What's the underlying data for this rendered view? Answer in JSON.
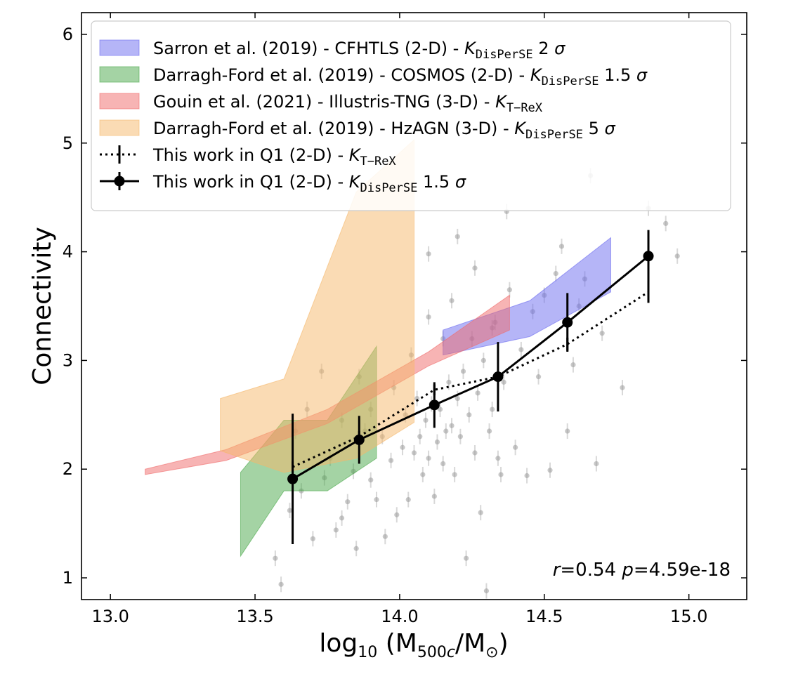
{
  "chart_data": {
    "type": "scatter",
    "title": "",
    "xlabel": "log10 (M500c/M⊙)",
    "ylabel": "Connectivity",
    "xlim": [
      12.9,
      15.2
    ],
    "ylim": [
      0.8,
      6.2
    ],
    "xticks": [
      "13.0",
      "13.5",
      "14.0",
      "14.5",
      "15.0"
    ],
    "yticks": [
      "1",
      "2",
      "3",
      "4",
      "5",
      "6"
    ],
    "legend_position": "top-left",
    "annotation": {
      "r_label": "r",
      "r_value": "=0.54 ",
      "p_label": "p",
      "p_value": "=4.59e-18"
    },
    "bands": [
      {
        "name": "Sarron et al. (2019) - CFHTLS (2-D) - ",
        "k": "K",
        "sub": "DisPerSE",
        "suffix": " 2 ",
        "sigma": "σ",
        "color": "#6b6bf0",
        "x": [
          14.15,
          14.45,
          14.73
        ],
        "upper": [
          3.28,
          3.55,
          4.13
        ],
        "lower": [
          3.05,
          3.22,
          3.63
        ]
      },
      {
        "name": "Darragh-Ford et al. (2019) - COSMOS (2-D) - ",
        "k": "K",
        "sub": "DisPerSE",
        "suffix": " 1.5 ",
        "sigma": "σ",
        "color": "#4aa84a",
        "x": [
          13.45,
          13.6,
          13.75,
          13.92
        ],
        "upper": [
          1.97,
          2.45,
          2.45,
          3.13
        ],
        "lower": [
          1.2,
          1.8,
          1.8,
          2.1
        ]
      },
      {
        "name": "Gouin et al. (2021) - Illustris-TNG (3-D) - ",
        "k": "K",
        "sub": "T−ReX",
        "suffix": "",
        "sigma": "",
        "color": "#f06a6a",
        "x": [
          13.12,
          13.4,
          13.75,
          14.1,
          14.38
        ],
        "upper": [
          2.0,
          2.18,
          2.55,
          3.08,
          3.6
        ],
        "lower": [
          1.95,
          2.08,
          2.42,
          2.95,
          3.28
        ]
      },
      {
        "name": "Darragh-Ford et al. (2019) - HzAGN (3-D) - ",
        "k": "K",
        "sub": "DisPerSE",
        "suffix": " 5 ",
        "sigma": "σ",
        "color": "#f5b86a",
        "x": [
          13.38,
          13.6,
          13.85,
          14.05
        ],
        "upper": [
          2.65,
          2.83,
          4.55,
          5.03
        ],
        "lower": [
          2.17,
          1.97,
          2.1,
          2.43
        ]
      }
    ],
    "series": [
      {
        "name": "This work in Q1 (2-D) - ",
        "k": "K",
        "sub": "T−ReX",
        "suffix": "",
        "sigma": "",
        "style": "dotted",
        "x": [
          13.63,
          13.86,
          14.12,
          14.34,
          14.58,
          14.86
        ],
        "y": [
          2.02,
          2.3,
          2.73,
          2.85,
          3.15,
          3.63
        ],
        "err": [
          0.05,
          0.05,
          0.05,
          0.05,
          0.06,
          0.1
        ]
      },
      {
        "name": "This work in Q1 (2-D) - ",
        "k": "K",
        "sub": "DisPerSE",
        "suffix": " 1.5 ",
        "sigma": "σ",
        "style": "solid",
        "x": [
          13.63,
          13.86,
          14.12,
          14.34,
          14.58,
          14.86
        ],
        "y": [
          1.91,
          2.27,
          2.59,
          2.85,
          3.35,
          3.96
        ],
        "err": [
          0.6,
          0.22,
          0.21,
          0.32,
          0.27,
          0.24
        ]
      }
    ],
    "scatter_points": [
      [
        13.59,
        0.94
      ],
      [
        13.57,
        1.18
      ],
      [
        13.62,
        1.62
      ],
      [
        13.66,
        1.8
      ],
      [
        13.7,
        1.36
      ],
      [
        13.74,
        1.92
      ],
      [
        13.78,
        1.44
      ],
      [
        13.8,
        1.55
      ],
      [
        13.82,
        1.7
      ],
      [
        13.84,
        1.98
      ],
      [
        13.85,
        1.27
      ],
      [
        13.88,
        2.35
      ],
      [
        13.9,
        1.9
      ],
      [
        13.92,
        1.72
      ],
      [
        13.95,
        1.38
      ],
      [
        13.97,
        2.08
      ],
      [
        13.99,
        1.58
      ],
      [
        14.01,
        2.2
      ],
      [
        14.03,
        1.72
      ],
      [
        14.05,
        2.15
      ],
      [
        14.07,
        2.3
      ],
      [
        14.08,
        1.95
      ],
      [
        14.09,
        2.45
      ],
      [
        14.1,
        2.1
      ],
      [
        14.11,
        2.6
      ],
      [
        14.12,
        1.75
      ],
      [
        14.13,
        2.25
      ],
      [
        14.14,
        2.55
      ],
      [
        14.15,
        2.05
      ],
      [
        14.16,
        2.35
      ],
      [
        14.17,
        2.8
      ],
      [
        14.18,
        2.4
      ],
      [
        14.19,
        1.95
      ],
      [
        14.2,
        2.65
      ],
      [
        14.21,
        2.3
      ],
      [
        14.22,
        2.9
      ],
      [
        14.23,
        1.18
      ],
      [
        14.24,
        2.5
      ],
      [
        14.25,
        3.2
      ],
      [
        14.26,
        2.15
      ],
      [
        14.27,
        2.7
      ],
      [
        14.28,
        1.6
      ],
      [
        14.29,
        3.0
      ],
      [
        14.3,
        0.88
      ],
      [
        14.31,
        2.35
      ],
      [
        14.32,
        2.55
      ],
      [
        14.33,
        3.35
      ],
      [
        14.34,
        2.1
      ],
      [
        14.35,
        1.95
      ],
      [
        14.36,
        2.8
      ],
      [
        14.37,
        4.37
      ],
      [
        14.38,
        3.65
      ],
      [
        14.4,
        2.2
      ],
      [
        14.42,
        3.1
      ],
      [
        14.44,
        1.94
      ],
      [
        14.46,
        3.45
      ],
      [
        14.48,
        2.85
      ],
      [
        14.5,
        3.6
      ],
      [
        14.52,
        1.99
      ],
      [
        14.54,
        3.8
      ],
      [
        14.56,
        4.05
      ],
      [
        14.58,
        2.35
      ],
      [
        14.6,
        2.96
      ],
      [
        14.62,
        3.5
      ],
      [
        14.64,
        3.75
      ],
      [
        14.66,
        4.7
      ],
      [
        14.68,
        2.05
      ],
      [
        14.7,
        3.25
      ],
      [
        14.77,
        2.75
      ],
      [
        14.86,
        4.4
      ],
      [
        14.92,
        4.26
      ],
      [
        14.96,
        3.96
      ],
      [
        13.73,
        2.9
      ],
      [
        13.8,
        2.45
      ],
      [
        13.86,
        2.85
      ],
      [
        13.9,
        2.55
      ],
      [
        14.04,
        3.05
      ],
      [
        14.1,
        3.4
      ],
      [
        14.15,
        3.2
      ],
      [
        14.18,
        3.55
      ],
      [
        14.2,
        4.14
      ],
      [
        14.26,
        3.85
      ],
      [
        14.32,
        3.3
      ],
      [
        14.1,
        3.98
      ],
      [
        14.06,
        2.65
      ],
      [
        14.02,
        2.5
      ],
      [
        13.98,
        2.75
      ],
      [
        13.94,
        2.3
      ],
      [
        13.76,
        2.1
      ],
      [
        13.68,
        2.55
      ],
      [
        13.64,
        2.35
      ]
    ]
  }
}
